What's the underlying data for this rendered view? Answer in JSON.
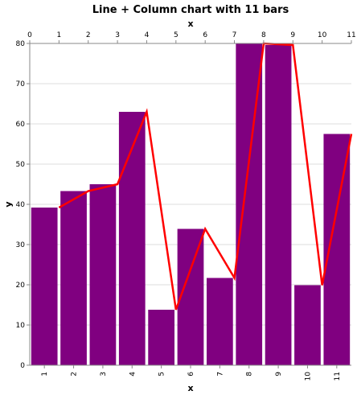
{
  "chart_data": {
    "type": "bar+line",
    "title": "Line + Column chart with 11 bars",
    "xlabel": "x",
    "x2label": "x",
    "ylabel": "y",
    "ylim": [
      0,
      80
    ],
    "yticks": [
      0,
      10,
      20,
      30,
      40,
      50,
      60,
      70,
      80
    ],
    "categories": [
      "1",
      "2",
      "3",
      "4",
      "5",
      "6",
      "7",
      "8",
      "9",
      "10",
      "11"
    ],
    "top_ticks": [
      0,
      1,
      2,
      3,
      4,
      5,
      6,
      7,
      8,
      9,
      10,
      11
    ],
    "bar_color": "#800080",
    "line_color": "#ff0000",
    "bars": {
      "values": [
        39.2,
        43.3,
        45.0,
        63.0,
        13.8,
        33.9,
        21.7,
        80.0,
        79.6,
        19.9,
        57.5
      ]
    },
    "line": {
      "x": [
        1,
        2,
        3,
        4,
        5,
        6,
        7,
        8,
        9,
        10,
        11
      ],
      "values": [
        39.2,
        43.3,
        45.0,
        63.0,
        13.8,
        33.9,
        21.7,
        80.0,
        79.6,
        19.9,
        57.5
      ]
    },
    "grid": true
  }
}
